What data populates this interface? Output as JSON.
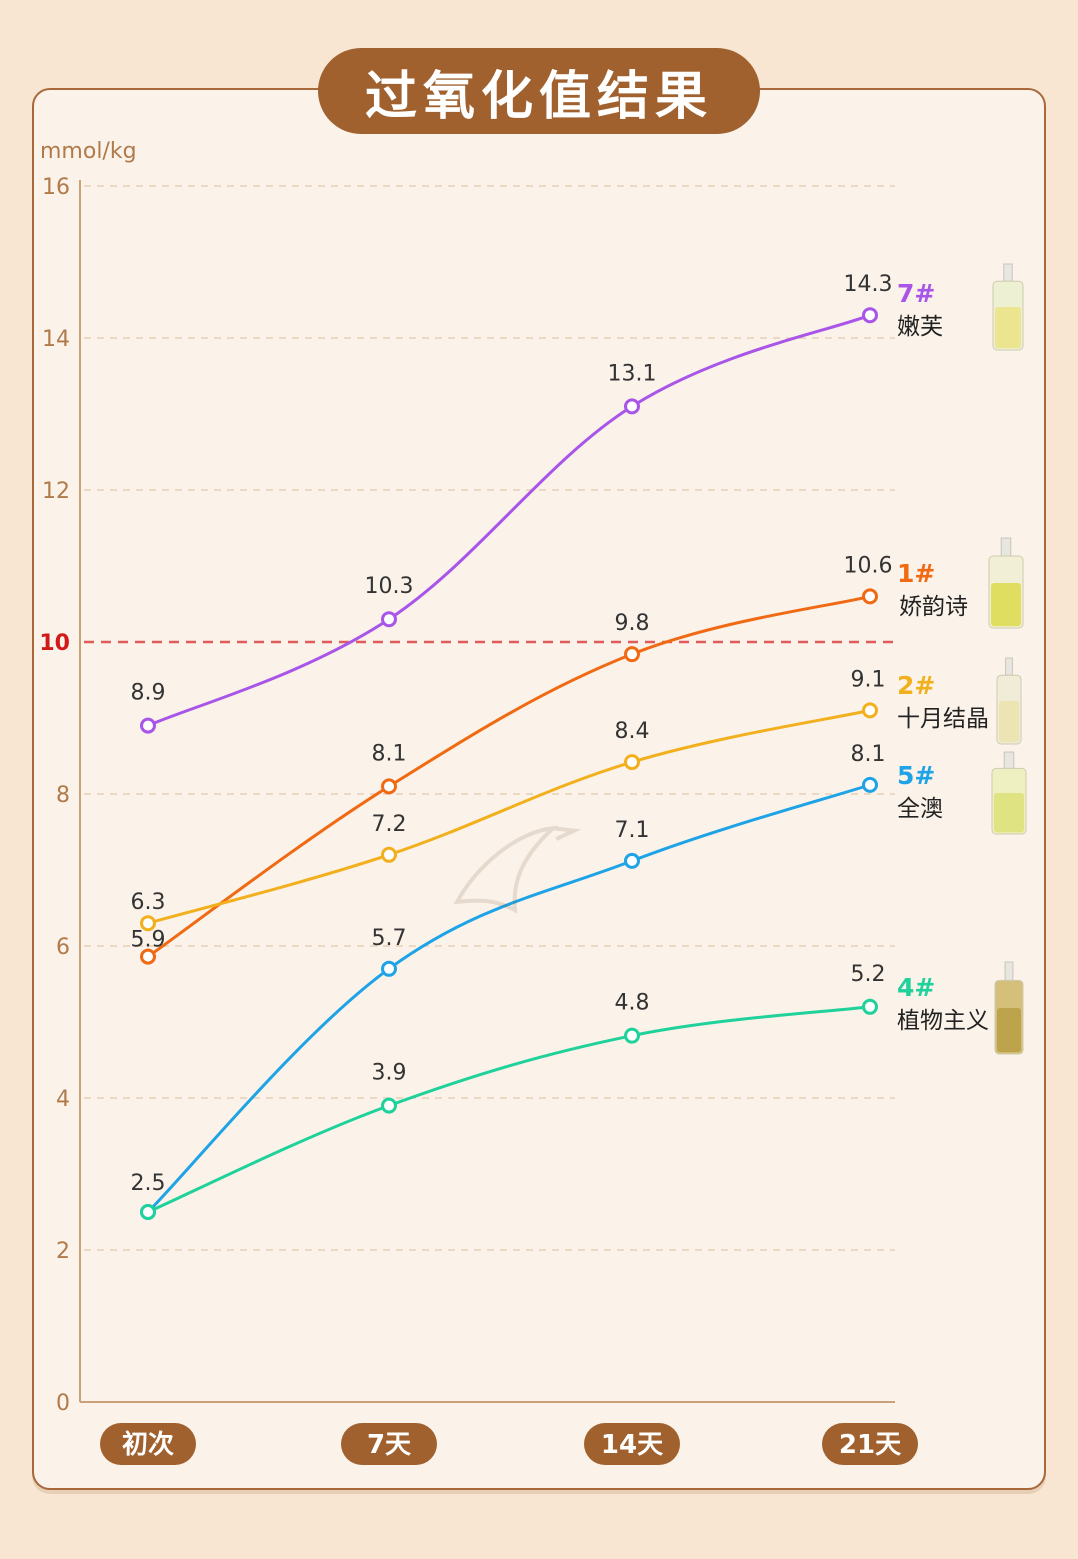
{
  "page": {
    "title": "过氧化值结果"
  },
  "chart_data": {
    "type": "line",
    "ylabel": "mmol/kg",
    "ylim": [
      0,
      16
    ],
    "yticks": [
      0,
      2,
      4,
      6,
      8,
      10,
      12,
      14,
      16
    ],
    "grid": true,
    "categories": [
      "初次",
      "7天",
      "14天",
      "21天"
    ],
    "threshold": {
      "value": 10,
      "label": "10",
      "color": "#e25b5b"
    },
    "series": [
      {
        "id": "7#",
        "name": "嫩芙",
        "color": "#a855e8",
        "values": [
          8.9,
          10.3,
          13.1,
          14.3
        ],
        "labels": [
          "8.9",
          "10.3",
          "13.1",
          "14.3"
        ]
      },
      {
        "id": "1#",
        "name": "娇韵诗",
        "color": "#f06a14",
        "values": [
          5.86,
          8.1,
          9.84,
          10.6
        ],
        "labels": [
          "5.9",
          "8.1",
          "9.8",
          "10.6"
        ]
      },
      {
        "id": "2#",
        "name": "十月结晶",
        "color": "#f2b01e",
        "values": [
          6.3,
          7.2,
          8.42,
          9.1
        ],
        "labels": [
          "6.3",
          "7.2",
          "8.4",
          "9.1"
        ]
      },
      {
        "id": "5#",
        "name": "全澳",
        "color": "#1ea3e6",
        "values": [
          2.5,
          5.7,
          7.12,
          8.12
        ],
        "labels": [
          "2.5",
          "5.7",
          "7.1",
          "8.1"
        ]
      },
      {
        "id": "4#",
        "name": "植物主义",
        "color": "#1fd19a",
        "values": [
          2.5,
          3.9,
          4.82,
          5.2
        ],
        "labels": [
          "2.5",
          "3.9",
          "4.8",
          "5.2"
        ]
      }
    ]
  },
  "colors": {
    "background": "#f8e6d2",
    "card": "#fbf3ea",
    "accent_brown": "#a0612f",
    "axis": "#c9a27a",
    "grid": "#e6cfb4",
    "tick_text": "#b07a4a",
    "value_text": "#333333",
    "threshold_tick": "#d11a1a"
  },
  "icons": [
    "bottle-icon-7",
    "bottle-icon-1",
    "bottle-icon-2",
    "bottle-icon-5",
    "bottle-icon-4"
  ]
}
